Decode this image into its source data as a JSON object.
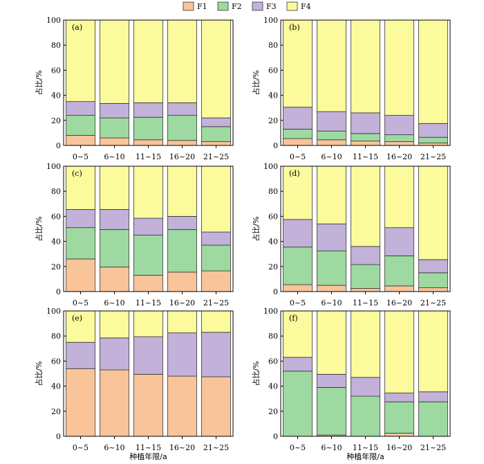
{
  "figure": {
    "legend": [
      {
        "key": "F1",
        "label": "F1",
        "color": "#f9c49a"
      },
      {
        "key": "F2",
        "label": "F2",
        "color": "#9dd9a0"
      },
      {
        "key": "F3",
        "label": "F3",
        "color": "#c2b1d9"
      },
      {
        "key": "F4",
        "label": "F4",
        "color": "#fbfa9c"
      }
    ],
    "ylabel": "占比/%",
    "xlabel": "种植年限/a"
  },
  "chart_data": [
    {
      "type": "bar",
      "stacked": true,
      "panel": "(a)",
      "categories": [
        "0~5",
        "6~10",
        "11~15",
        "16~20",
        "21~25"
      ],
      "ylim": [
        0,
        100
      ],
      "yticks": [
        0,
        20,
        40,
        60,
        80,
        100
      ],
      "series": [
        {
          "name": "F1",
          "values": [
            8,
            6,
            4.5,
            4,
            3
          ]
        },
        {
          "name": "F2",
          "values": [
            16,
            16,
            18,
            20,
            12
          ]
        },
        {
          "name": "F3",
          "values": [
            11,
            11.5,
            11.5,
            10,
            7
          ]
        },
        {
          "name": "F4",
          "values": [
            65,
            66.5,
            66,
            66,
            78
          ]
        }
      ]
    },
    {
      "type": "bar",
      "stacked": true,
      "panel": "(b)",
      "categories": [
        "0~5",
        "6~10",
        "11~15",
        "16~20",
        "21~25"
      ],
      "ylim": [
        0,
        100
      ],
      "yticks": [
        0,
        20,
        40,
        60,
        80,
        100
      ],
      "series": [
        {
          "name": "F1",
          "values": [
            5.5,
            4.5,
            3.5,
            3,
            2
          ]
        },
        {
          "name": "F2",
          "values": [
            7.5,
            7,
            6,
            5.5,
            4.5
          ]
        },
        {
          "name": "F3",
          "values": [
            17.5,
            15.5,
            16.5,
            15.5,
            11
          ]
        },
        {
          "name": "F4",
          "values": [
            69.5,
            73,
            74,
            76,
            82.5
          ]
        }
      ]
    },
    {
      "type": "bar",
      "stacked": true,
      "panel": "(c)",
      "categories": [
        "0~5",
        "6~10",
        "11~15",
        "16~20",
        "21~25"
      ],
      "ylim": [
        0,
        100
      ],
      "yticks": [
        0,
        20,
        40,
        60,
        80,
        100
      ],
      "series": [
        {
          "name": "F1",
          "values": [
            26,
            19.5,
            13,
            15.5,
            16.5
          ]
        },
        {
          "name": "F2",
          "values": [
            25,
            30,
            32,
            34,
            20.5
          ]
        },
        {
          "name": "F3",
          "values": [
            14.5,
            16,
            13.5,
            10.5,
            10.5
          ]
        },
        {
          "name": "F4",
          "values": [
            34.5,
            34.5,
            41.5,
            40,
            52.5
          ]
        }
      ]
    },
    {
      "type": "bar",
      "stacked": true,
      "panel": "(d)",
      "categories": [
        "0~5",
        "6~10",
        "11~15",
        "16~20",
        "21~25"
      ],
      "ylim": [
        0,
        100
      ],
      "yticks": [
        0,
        20,
        40,
        60,
        80,
        100
      ],
      "series": [
        {
          "name": "F1",
          "values": [
            5.5,
            5,
            2.5,
            4.5,
            3
          ]
        },
        {
          "name": "F2",
          "values": [
            30,
            27.5,
            19,
            24,
            12
          ]
        },
        {
          "name": "F3",
          "values": [
            22,
            21.5,
            14.5,
            22.5,
            10.5
          ]
        },
        {
          "name": "F4",
          "values": [
            42.5,
            46,
            64,
            49,
            74.5
          ]
        }
      ]
    },
    {
      "type": "bar",
      "stacked": true,
      "panel": "(e)",
      "categories": [
        "0~5",
        "6~10",
        "11~15",
        "16~20",
        "21~25"
      ],
      "ylim": [
        0,
        100
      ],
      "yticks": [
        0,
        20,
        40,
        60,
        80,
        100
      ],
      "series": [
        {
          "name": "F1",
          "values": [
            54,
            53,
            49.5,
            48,
            47.5
          ]
        },
        {
          "name": "F2",
          "values": [
            0,
            0,
            0,
            0,
            0
          ]
        },
        {
          "name": "F3",
          "values": [
            21,
            25.5,
            30,
            34.5,
            35.5
          ]
        },
        {
          "name": "F4",
          "values": [
            25,
            21.5,
            20.5,
            17.5,
            17
          ]
        }
      ]
    },
    {
      "type": "bar",
      "stacked": true,
      "panel": "(f)",
      "categories": [
        "0~5",
        "6~10",
        "11~15",
        "16~20",
        "21~25"
      ],
      "ylim": [
        0,
        100
      ],
      "yticks": [
        0,
        20,
        40,
        60,
        80,
        100
      ],
      "series": [
        {
          "name": "F1",
          "values": [
            0,
            1,
            0,
            2.5,
            0
          ]
        },
        {
          "name": "F2",
          "values": [
            52,
            38,
            32,
            25,
            27.5
          ]
        },
        {
          "name": "F3",
          "values": [
            11,
            10.5,
            15,
            7,
            8
          ]
        },
        {
          "name": "F4",
          "values": [
            37,
            50.5,
            53,
            65.5,
            64.5
          ]
        }
      ]
    }
  ]
}
